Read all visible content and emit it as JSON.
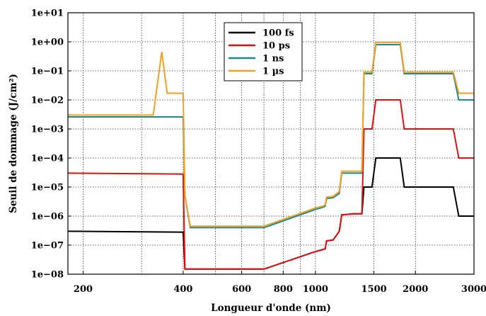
{
  "chart_data": {
    "type": "line",
    "xlabel": "Longueur d'onde (nm)",
    "ylabel": "Seuil de dommage (J/cm²)",
    "xscale": "log",
    "yscale": "log",
    "xlim": [
      180,
      3000
    ],
    "ylim": [
      1e-08,
      10
    ],
    "grid": true,
    "legend_position": "top-center",
    "x_ticks": [
      {
        "value": 200,
        "label": "200"
      },
      {
        "value": 400,
        "label": "400"
      },
      {
        "value": 600,
        "label": "600"
      },
      {
        "value": 800,
        "label": "800"
      },
      {
        "value": 1000,
        "label": "1000"
      },
      {
        "value": 1500,
        "label": "1500"
      },
      {
        "value": 2000,
        "label": "2000"
      },
      {
        "value": 3000,
        "label": "3000"
      }
    ],
    "x_minor_grid": [
      300,
      500,
      700,
      900
    ],
    "y_ticks": [
      {
        "value": 10.0,
        "label": "1e+01"
      },
      {
        "value": 1.0,
        "label": "1e+00"
      },
      {
        "value": 0.1,
        "label": "1e−01"
      },
      {
        "value": 0.01,
        "label": "1e−02"
      },
      {
        "value": 0.001,
        "label": "1e−03"
      },
      {
        "value": 0.0001,
        "label": "1e−04"
      },
      {
        "value": 1e-05,
        "label": "1e−05"
      },
      {
        "value": 1e-06,
        "label": "1e−06"
      },
      {
        "value": 1e-07,
        "label": "1e−07"
      },
      {
        "value": 1e-08,
        "label": "1e−08"
      }
    ],
    "series": [
      {
        "name": "100 fs",
        "color": "#000000",
        "points": [
          [
            180,
            3e-07
          ],
          [
            400,
            2.8e-07
          ],
          [
            405,
            1.5e-08
          ],
          [
            420,
            1.5e-08
          ],
          [
            700,
            1.5e-08
          ],
          [
            1000,
            6e-08
          ],
          [
            1050,
            7e-08
          ],
          [
            1070,
            7.5e-08
          ],
          [
            1080,
            1.4e-07
          ],
          [
            1130,
            1.5e-07
          ],
          [
            1180,
            3e-07
          ],
          [
            1200,
            1.1e-06
          ],
          [
            1300,
            1.2e-06
          ],
          [
            1380,
            1.2e-06
          ],
          [
            1400,
            1e-05
          ],
          [
            1480,
            1e-05
          ],
          [
            1520,
            0.0001
          ],
          [
            1800,
            0.0001
          ],
          [
            1850,
            1e-05
          ],
          [
            2600,
            1e-05
          ],
          [
            2700,
            1e-06
          ],
          [
            3000,
            1e-06
          ]
        ]
      },
      {
        "name": "10 ps",
        "color": "#dd1111",
        "points": [
          [
            180,
            3e-05
          ],
          [
            400,
            2.8e-05
          ],
          [
            405,
            1.5e-08
          ],
          [
            420,
            1.5e-08
          ],
          [
            700,
            1.5e-08
          ],
          [
            1000,
            6e-08
          ],
          [
            1050,
            7e-08
          ],
          [
            1070,
            7.5e-08
          ],
          [
            1080,
            1.4e-07
          ],
          [
            1130,
            1.5e-07
          ],
          [
            1180,
            3e-07
          ],
          [
            1200,
            1.1e-06
          ],
          [
            1300,
            1.2e-06
          ],
          [
            1380,
            1.2e-06
          ],
          [
            1400,
            0.001
          ],
          [
            1480,
            0.001
          ],
          [
            1520,
            0.01
          ],
          [
            1800,
            0.01
          ],
          [
            1850,
            0.001
          ],
          [
            2600,
            0.001
          ],
          [
            2700,
            0.0001
          ],
          [
            3000,
            0.0001
          ]
        ]
      },
      {
        "name": "1 ns",
        "color": "#1a8a8a",
        "points": [
          [
            180,
            0.0026
          ],
          [
            400,
            0.0026
          ],
          [
            405,
            5e-06
          ],
          [
            420,
            4e-07
          ],
          [
            700,
            4e-07
          ],
          [
            1000,
            1.7e-06
          ],
          [
            1050,
            2e-06
          ],
          [
            1070,
            2.2e-06
          ],
          [
            1080,
            4e-06
          ],
          [
            1130,
            4.3e-06
          ],
          [
            1180,
            6e-06
          ],
          [
            1200,
            3e-05
          ],
          [
            1380,
            3e-05
          ],
          [
            1400,
            0.08
          ],
          [
            1480,
            0.08
          ],
          [
            1520,
            0.8
          ],
          [
            1800,
            0.8
          ],
          [
            1850,
            0.08
          ],
          [
            2600,
            0.08
          ],
          [
            2700,
            0.01
          ],
          [
            3000,
            0.01
          ]
        ]
      },
      {
        "name": "1 µs",
        "color": "#f5a020",
        "points": [
          [
            180,
            0.003
          ],
          [
            325,
            0.003
          ],
          [
            345,
            0.45
          ],
          [
            358,
            0.017
          ],
          [
            400,
            0.017
          ],
          [
            405,
            5e-06
          ],
          [
            420,
            4.5e-07
          ],
          [
            700,
            4.5e-07
          ],
          [
            1000,
            1.9e-06
          ],
          [
            1050,
            2.2e-06
          ],
          [
            1070,
            2.4e-06
          ],
          [
            1080,
            4.5e-06
          ],
          [
            1130,
            4.7e-06
          ],
          [
            1180,
            7e-06
          ],
          [
            1200,
            3.5e-05
          ],
          [
            1380,
            3.5e-05
          ],
          [
            1400,
            0.09
          ],
          [
            1480,
            0.09
          ],
          [
            1520,
            0.95
          ],
          [
            1800,
            0.95
          ],
          [
            1850,
            0.09
          ],
          [
            2600,
            0.09
          ],
          [
            2700,
            0.017
          ],
          [
            3000,
            0.017
          ]
        ]
      }
    ]
  }
}
